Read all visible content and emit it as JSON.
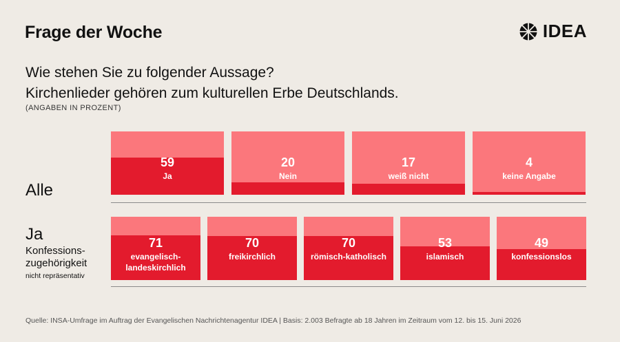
{
  "header": {
    "title": "Frage der Woche",
    "brand": "IDEA"
  },
  "question": {
    "line1": "Wie stehen Sie zu folgender Aussage?",
    "line2": "Kirchenlieder gehören zum kulturellen Erbe Deutschlands.",
    "unit_note": "(ANGABEN IN PROZENT)"
  },
  "colors": {
    "background": "#efebe5",
    "bar_light": "#fb777c",
    "bar_dark": "#e31b2d",
    "text": "#111111"
  },
  "chart_data": [
    {
      "type": "bar",
      "group_label": "Alle",
      "categories": [
        "Ja",
        "Nein",
        "weiß nicht",
        "keine Angabe"
      ],
      "values": [
        59,
        20,
        17,
        4
      ],
      "ylim": [
        0,
        100
      ]
    },
    {
      "type": "bar",
      "group_label": "Ja",
      "group_sub_line1": "Konfessions-",
      "group_sub_line2": "zugehörigkeit",
      "group_note": "nicht repräsentativ",
      "categories": [
        "evangelisch-landeskirchlich",
        "freikirchlich",
        "römisch-katholisch",
        "islamisch",
        "konfessionslos"
      ],
      "category_lines": [
        [
          "evangelisch-",
          "landeskirchlich"
        ],
        [
          "freikirchlich"
        ],
        [
          "römisch-katholisch"
        ],
        [
          "islamisch"
        ],
        [
          "konfessionslos"
        ]
      ],
      "values": [
        71,
        70,
        70,
        53,
        49
      ],
      "ylim": [
        0,
        100
      ]
    }
  ],
  "source": "Quelle: INSA-Umfrage im Auftrag der Evangelischen Nachrichtenagentur IDEA | Basis: 2.003 Befragte ab 18 Jahren im Zeitraum vom 12. bis 15. Juni 2026"
}
